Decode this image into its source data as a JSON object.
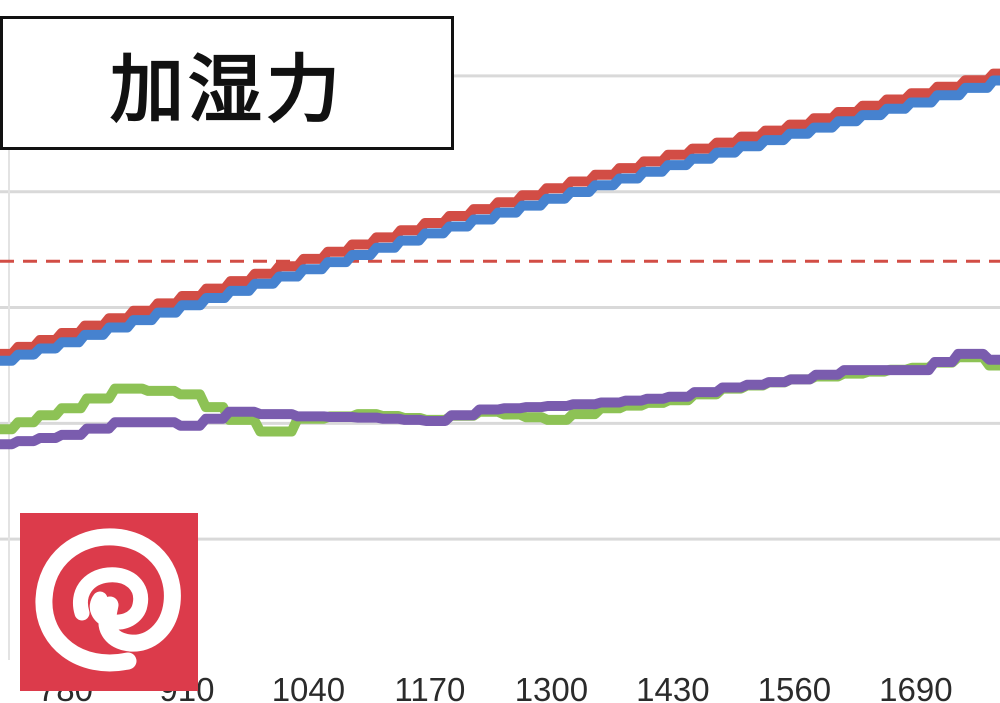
{
  "title": "加湿力",
  "colors": {
    "red": "#d24d45",
    "blue": "#4682cf",
    "green": "#8dc255",
    "purple": "#7a5cae",
    "grid": "#d9d9d9",
    "logo_bg": "#dc3b4b"
  },
  "logo": {
    "icon": "at-swirl-icon"
  },
  "chart_data": {
    "type": "line",
    "title": "加湿力",
    "xlabel": "",
    "ylabel": "",
    "xlim": [
      710,
      1780
    ],
    "ylim": [
      0,
      5.5
    ],
    "grid": "horizontal",
    "x_ticks": [
      780,
      910,
      1040,
      1170,
      1300,
      1430,
      1560,
      1690
    ],
    "reference_line": {
      "y": 3.4,
      "style": "dashed",
      "color": "#d24d45"
    },
    "series": [
      {
        "color": "#d24d45",
        "x": [
          710,
          780,
          910,
          1040,
          1170,
          1300,
          1430,
          1560,
          1690,
          1780
        ],
        "y": [
          2.6,
          2.78,
          3.1,
          3.42,
          3.73,
          4.03,
          4.32,
          4.58,
          4.85,
          5.02
        ]
      },
      {
        "color": "#4682cf",
        "x": [
          710,
          780,
          910,
          1040,
          1170,
          1300,
          1430,
          1560,
          1690,
          1780
        ],
        "y": [
          2.54,
          2.7,
          3.02,
          3.33,
          3.64,
          3.94,
          4.23,
          4.5,
          4.77,
          4.96
        ]
      },
      {
        "color": "#8dc255",
        "x": [
          710,
          780,
          840,
          880,
          910,
          960,
          1000,
          1040,
          1100,
          1170,
          1230,
          1300,
          1360,
          1430,
          1490,
          1560,
          1620,
          1690,
          1740,
          1780
        ],
        "y": [
          1.95,
          2.13,
          2.3,
          2.28,
          2.25,
          2.03,
          1.93,
          2.04,
          2.08,
          2.03,
          2.1,
          2.03,
          2.13,
          2.2,
          2.3,
          2.38,
          2.43,
          2.48,
          2.57,
          2.5
        ]
      },
      {
        "color": "#7a5cae",
        "x": [
          710,
          780,
          840,
          880,
          910,
          960,
          1000,
          1040,
          1100,
          1170,
          1230,
          1300,
          1360,
          1430,
          1490,
          1560,
          1620,
          1690,
          1740,
          1780
        ],
        "y": [
          1.82,
          1.9,
          2.01,
          2.01,
          1.98,
          2.1,
          2.08,
          2.06,
          2.05,
          2.02,
          2.12,
          2.15,
          2.18,
          2.23,
          2.31,
          2.38,
          2.46,
          2.46,
          2.6,
          2.55
        ]
      }
    ]
  }
}
